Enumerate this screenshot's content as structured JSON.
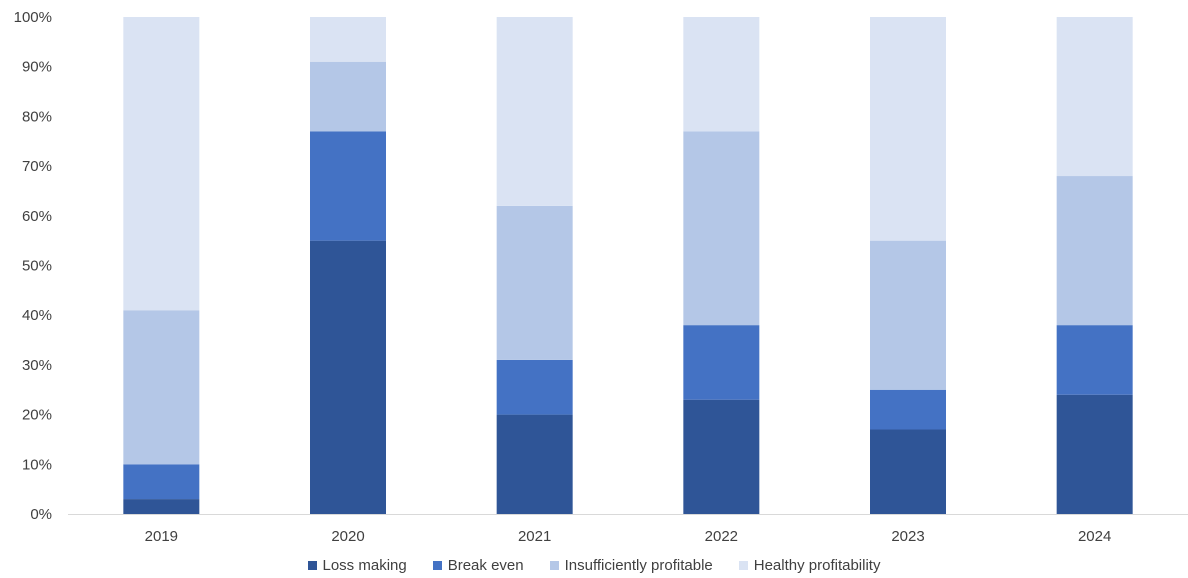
{
  "chart_data": {
    "type": "bar",
    "stacked": true,
    "categories": [
      "2019",
      "2020",
      "2021",
      "2022",
      "2023",
      "2024"
    ],
    "series": [
      {
        "name": "Loss making",
        "color": "#2f5597",
        "values": [
          3,
          55,
          20,
          23,
          17,
          24
        ]
      },
      {
        "name": "Break even",
        "color": "#4472c4",
        "values": [
          7,
          22,
          11,
          15,
          8,
          14
        ]
      },
      {
        "name": "Insufficiently profitable",
        "color": "#b4c7e7",
        "values": [
          31,
          14,
          31,
          39,
          30,
          30
        ]
      },
      {
        "name": "Healthy profitability",
        "color": "#dae3f3",
        "values": [
          59,
          9,
          38,
          23,
          45,
          32
        ]
      }
    ],
    "title": "",
    "xlabel": "",
    "ylabel": "",
    "ylim": [
      0,
      100
    ],
    "yticks": [
      "0%",
      "10%",
      "20%",
      "30%",
      "40%",
      "50%",
      "60%",
      "70%",
      "80%",
      "90%",
      "100%"
    ],
    "grid": false,
    "legend_position": "bottom"
  }
}
